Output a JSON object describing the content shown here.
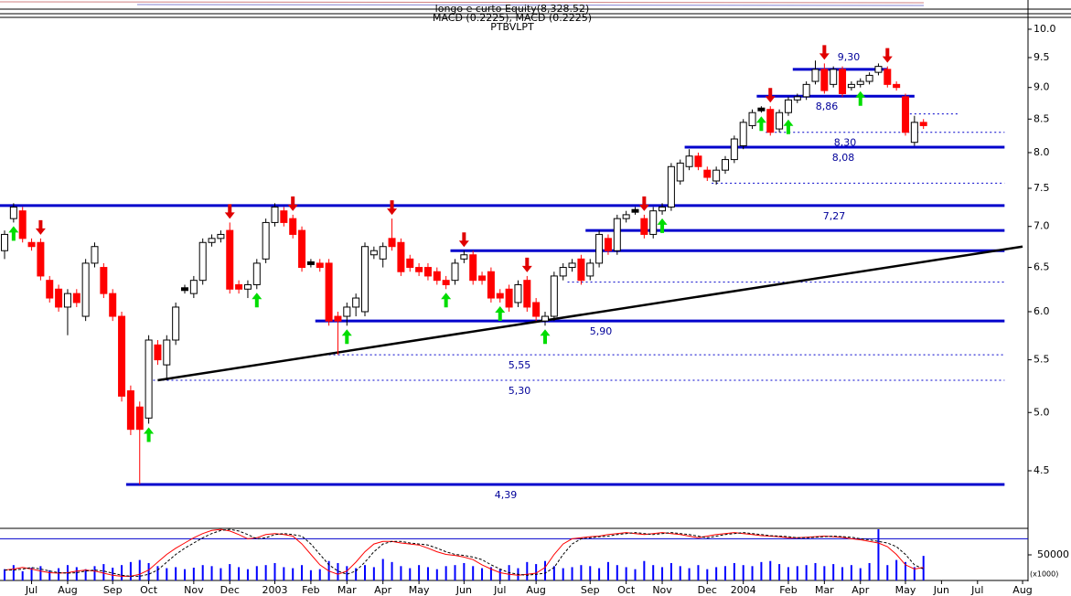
{
  "chart_data": {
    "type": "candlestick",
    "header": [
      "longo e curto Equity(8,328.52)",
      "MACD (0.2225), MACD (0.2225)",
      "PTBVLPT"
    ],
    "categories": [
      null,
      null,
      null,
      "Jul",
      null,
      null,
      null,
      "Aug",
      null,
      null,
      null,
      null,
      "Sep",
      null,
      null,
      null,
      "Oct",
      null,
      null,
      null,
      null,
      "Nov",
      null,
      null,
      null,
      "Dec",
      null,
      null,
      null,
      null,
      "2003",
      null,
      null,
      null,
      "Feb",
      null,
      null,
      null,
      "Mar",
      null,
      null,
      null,
      "Apr",
      null,
      null,
      null,
      "May",
      null,
      null,
      null,
      null,
      "Jun",
      null,
      null,
      null,
      "Jul",
      null,
      null,
      null,
      "Aug",
      null,
      null,
      null,
      null,
      null,
      "Sep",
      null,
      null,
      null,
      "Oct",
      null,
      null,
      null,
      "Nov",
      null,
      null,
      null,
      null,
      "Dec",
      null,
      null,
      null,
      "2004",
      null,
      null,
      null,
      null,
      "Feb",
      null,
      null,
      null,
      "Mar",
      null,
      null,
      null,
      "Apr",
      null,
      null,
      null,
      null,
      "May",
      null,
      null,
      null,
      "Jun",
      null,
      null,
      null,
      "Jul",
      null,
      null,
      null,
      null,
      "Aug"
    ],
    "open": [
      6.7,
      7.1,
      7.2,
      6.8,
      6.8,
      6.35,
      6.25,
      6.05,
      6.2,
      5.95,
      6.55,
      6.5,
      6.2,
      5.95,
      5.2,
      5.05,
      4.95,
      5.65,
      5.45,
      5.7,
      6.25,
      6.2,
      6.35,
      6.8,
      6.85,
      6.95,
      6.3,
      6.25,
      6.3,
      6.6,
      7.05,
      7.2,
      7.1,
      6.95,
      6.55,
      6.55,
      6.55,
      5.95,
      5.95,
      6.05,
      6.0,
      6.65,
      6.6,
      6.85,
      6.8,
      6.6,
      6.5,
      6.5,
      6.45,
      6.35,
      6.35,
      6.6,
      6.65,
      6.4,
      6.45,
      6.2,
      6.25,
      6.1,
      6.35,
      6.1,
      5.9,
      5.95,
      6.4,
      6.5,
      6.6,
      6.4,
      6.55,
      6.85,
      6.7,
      7.1,
      7.2,
      7.1,
      6.9,
      7.2,
      7.25,
      7.6,
      7.8,
      7.95,
      7.75,
      7.6,
      7.75,
      7.9,
      8.1,
      8.4,
      8.65,
      8.65,
      8.35,
      8.6,
      8.8,
      8.85,
      9.1,
      9.3,
      9.05,
      9.3,
      9.0,
      9.05,
      9.1,
      9.25,
      9.3,
      9.05,
      8.85,
      8.15,
      8.45,
      null,
      null,
      null,
      null,
      null,
      null,
      null,
      null,
      null,
      null,
      null
    ],
    "high": [
      6.95,
      7.3,
      7.25,
      6.85,
      6.85,
      6.4,
      6.3,
      6.25,
      6.25,
      6.6,
      6.8,
      6.55,
      6.25,
      6.0,
      5.25,
      5.1,
      5.75,
      5.7,
      5.75,
      6.1,
      6.3,
      6.4,
      6.85,
      6.9,
      6.95,
      7.05,
      6.35,
      6.35,
      6.6,
      7.1,
      7.3,
      7.25,
      7.15,
      7.0,
      6.6,
      6.6,
      6.6,
      6.0,
      6.1,
      6.2,
      6.8,
      6.75,
      6.8,
      7.1,
      6.85,
      6.65,
      6.55,
      6.55,
      6.5,
      6.4,
      6.6,
      6.7,
      6.7,
      6.45,
      6.5,
      6.25,
      6.3,
      6.35,
      6.4,
      6.15,
      6.0,
      6.45,
      6.55,
      6.6,
      6.65,
      6.6,
      6.95,
      6.9,
      7.15,
      7.2,
      7.25,
      7.15,
      7.25,
      7.3,
      7.85,
      7.9,
      8.05,
      8.0,
      7.8,
      7.8,
      7.95,
      8.25,
      8.5,
      8.65,
      8.7,
      8.7,
      8.65,
      8.85,
      8.9,
      9.1,
      9.45,
      9.4,
      9.35,
      9.35,
      9.1,
      9.15,
      9.25,
      9.4,
      9.35,
      9.1,
      8.9,
      8.55,
      8.5,
      null,
      null,
      null,
      null,
      null,
      null,
      null,
      null,
      null,
      null,
      null
    ],
    "low": [
      6.6,
      7.05,
      6.8,
      6.7,
      6.35,
      6.1,
      6.0,
      5.75,
      6.05,
      5.9,
      6.5,
      6.15,
      5.9,
      5.1,
      4.8,
      4.39,
      4.9,
      5.45,
      5.3,
      5.65,
      6.2,
      6.15,
      6.3,
      6.75,
      6.8,
      6.2,
      6.2,
      6.15,
      6.25,
      6.55,
      7.0,
      7.0,
      6.85,
      6.45,
      6.5,
      6.45,
      5.85,
      5.55,
      5.85,
      5.95,
      5.95,
      6.6,
      6.5,
      6.7,
      6.4,
      6.45,
      6.4,
      6.35,
      6.3,
      6.25,
      6.3,
      6.55,
      6.3,
      6.3,
      6.1,
      6.1,
      6.0,
      6.05,
      6.0,
      5.9,
      5.85,
      5.9,
      6.35,
      6.45,
      6.3,
      6.35,
      6.5,
      6.65,
      6.65,
      7.05,
      7.15,
      6.85,
      6.85,
      7.15,
      7.2,
      7.55,
      7.75,
      7.75,
      7.6,
      7.55,
      7.7,
      7.85,
      8.05,
      8.35,
      8.6,
      8.25,
      8.3,
      8.55,
      8.75,
      8.8,
      9.05,
      8.9,
      9.0,
      8.85,
      8.95,
      9.0,
      9.05,
      9.2,
      9.0,
      8.95,
      8.25,
      8.1,
      8.35,
      null,
      null,
      null,
      null,
      null,
      null,
      null,
      null,
      null,
      null,
      null
    ],
    "close": [
      6.9,
      7.25,
      6.85,
      6.75,
      6.4,
      6.15,
      6.05,
      6.2,
      6.1,
      6.55,
      6.75,
      6.2,
      5.95,
      5.15,
      4.85,
      4.85,
      5.7,
      5.5,
      5.7,
      6.05,
      6.25,
      6.35,
      6.8,
      6.85,
      6.9,
      6.25,
      6.25,
      6.3,
      6.55,
      7.05,
      7.25,
      7.05,
      6.9,
      6.5,
      6.55,
      6.5,
      5.9,
      5.9,
      6.05,
      6.15,
      6.75,
      6.7,
      6.75,
      6.75,
      6.45,
      6.5,
      6.45,
      6.4,
      6.35,
      6.3,
      6.55,
      6.65,
      6.35,
      6.35,
      6.15,
      6.15,
      6.05,
      6.3,
      6.05,
      5.95,
      5.95,
      6.4,
      6.5,
      6.55,
      6.35,
      6.55,
      6.9,
      6.7,
      7.1,
      7.15,
      7.2,
      6.9,
      7.2,
      7.25,
      7.8,
      7.85,
      7.95,
      7.8,
      7.65,
      7.75,
      7.9,
      8.2,
      8.45,
      8.6,
      8.65,
      8.3,
      8.6,
      8.8,
      8.85,
      9.05,
      9.3,
      8.95,
      9.3,
      8.9,
      9.05,
      9.1,
      9.2,
      9.35,
      9.05,
      9.0,
      8.3,
      8.45,
      8.4,
      null,
      null,
      null,
      null,
      null,
      null,
      null,
      null,
      null,
      null,
      null
    ],
    "up_color": "#ffffff",
    "down_color": "#ff0000",
    "flat_color": "#000000",
    "log_scale": true,
    "ylim": [
      4.075,
      10.2
    ],
    "yticks": [
      {
        "value": 10,
        "label": "10.0"
      },
      9.5,
      {
        "value": 9,
        "label": "9.0"
      },
      8.5,
      {
        "value": 8,
        "label": "8.0"
      },
      7.5,
      {
        "value": 7,
        "label": "7.0"
      },
      6.5,
      {
        "value": 6,
        "label": "6.0"
      },
      5.5,
      {
        "value": 5,
        "label": "5.0"
      },
      4.5
    ],
    "levels": [
      {
        "value": 9.3,
        "label": "9,30",
        "start": 88,
        "end": 98,
        "style": "solid"
      },
      {
        "value": 8.86,
        "label": "8,86",
        "start": 84,
        "end": 101,
        "style": "solid"
      },
      {
        "value": 8.3,
        "label": "8,30",
        "start": 85,
        "end": 111,
        "style": "dashed"
      },
      {
        "value": 8.08,
        "label": "8,08",
        "start": 76,
        "end": 111,
        "style": "solid"
      },
      {
        "value": 7.27,
        "label": "7,27",
        "start": 0,
        "end": 111,
        "style": "solid"
      },
      {
        "value": 5.9,
        "label": "5,90",
        "start": 35,
        "end": 111,
        "style": "solid"
      },
      {
        "value": 5.55,
        "label": "5,55",
        "start": 36,
        "end": 111,
        "style": "dashed"
      },
      {
        "value": 5.3,
        "label": "5,30",
        "start": 17,
        "end": 111,
        "style": "dashed"
      },
      {
        "value": 4.39,
        "label": "4,39",
        "start": 14,
        "end": 111,
        "style": "solid"
      },
      {
        "value": 6.95,
        "start": 65,
        "end": 111,
        "style": "solid"
      },
      {
        "value": 6.7,
        "start": 50,
        "end": 111,
        "style": "solid"
      },
      {
        "value": 8.58,
        "start": 101,
        "end": 106,
        "style": "dashed"
      },
      {
        "value": 7.57,
        "start": 79,
        "end": 111,
        "style": "dashed"
      },
      {
        "value": 6.33,
        "start": 63,
        "end": 111,
        "style": "dashed"
      }
    ],
    "level_color": "#0000cc",
    "trendline": {
      "x": [
        17,
        113
      ],
      "y": [
        5.3,
        6.75
      ],
      "color": "#000000"
    },
    "sell_signals": [
      4,
      25,
      32,
      43,
      51,
      58,
      71,
      85,
      91,
      98
    ],
    "buy_signals": [
      1,
      16,
      28,
      38,
      49,
      55,
      60,
      73,
      84,
      87,
      95
    ],
    "sell_color": "#e00000",
    "buy_color": "#00dd00",
    "volume": [
      22000,
      30000,
      18000,
      25000,
      28000,
      20000,
      24000,
      30000,
      26000,
      22000,
      28000,
      32000,
      25000,
      30000,
      36000,
      40000,
      34000,
      28000,
      24000,
      26000,
      22000,
      25000,
      30000,
      28000,
      24000,
      32000,
      26000,
      22000,
      28000,
      30000,
      34000,
      26000,
      24000,
      30000,
      20000,
      22000,
      38000,
      34000,
      28000,
      24000,
      30000,
      26000,
      42000,
      36000,
      28000,
      24000,
      30000,
      26000,
      22000,
      28000,
      30000,
      34000,
      28000,
      24000,
      26000,
      22000,
      30000,
      24000,
      36000,
      32000,
      38000,
      28000,
      24000,
      26000,
      30000,
      28000,
      24000,
      36000,
      30000,
      26000,
      22000,
      38000,
      30000,
      26000,
      34000,
      28000,
      24000,
      30000,
      22000,
      26000,
      28000,
      34000,
      30000,
      28000,
      36000,
      38000,
      32000,
      26000,
      28000,
      30000,
      34000,
      28000,
      32000,
      26000,
      30000,
      24000,
      34000,
      100000,
      30000,
      40000,
      36000,
      26000,
      48000,
      null,
      null,
      null,
      null,
      null,
      null,
      null,
      null,
      null,
      null,
      null
    ],
    "volume_color": "#0000ff",
    "vlim": [
      0,
      100000
    ],
    "vticks": [
      50000
    ],
    "volume_unit": "(x1000)",
    "oscillator": [
      {
        "color": "#ff0000",
        "dashed": false,
        "values": [
          20,
          22,
          25,
          22,
          18,
          15,
          14,
          15,
          18,
          20,
          18,
          14,
          10,
          8,
          8,
          12,
          20,
          35,
          50,
          62,
          72,
          82,
          90,
          96,
          98,
          95,
          88,
          80,
          82,
          88,
          90,
          88,
          85,
          70,
          50,
          30,
          18,
          12,
          18,
          35,
          55,
          70,
          75,
          75,
          72,
          70,
          68,
          62,
          55,
          50,
          48,
          45,
          40,
          30,
          22,
          15,
          12,
          10,
          12,
          14,
          25,
          50,
          70,
          80,
          82,
          84,
          85,
          88,
          90,
          92,
          90,
          88,
          90,
          92,
          90,
          88,
          85,
          82,
          85,
          88,
          90,
          92,
          90,
          88,
          86,
          85,
          84,
          82,
          82,
          83,
          84,
          85,
          84,
          83,
          80,
          78,
          75,
          72,
          65,
          50,
          30,
          22,
          25,
          null,
          null,
          null,
          null,
          null,
          null,
          null,
          null,
          null,
          null,
          null
        ]
      },
      {
        "color": "#000000",
        "dashed": true,
        "values": [
          20,
          20,
          22,
          25,
          22,
          18,
          15,
          14,
          15,
          18,
          20,
          18,
          14,
          10,
          8,
          8,
          12,
          20,
          35,
          50,
          62,
          72,
          82,
          90,
          96,
          98,
          95,
          88,
          80,
          82,
          88,
          90,
          88,
          85,
          70,
          50,
          30,
          18,
          12,
          18,
          35,
          55,
          70,
          75,
          75,
          72,
          70,
          68,
          62,
          55,
          50,
          48,
          45,
          40,
          30,
          22,
          15,
          12,
          10,
          12,
          14,
          25,
          50,
          70,
          80,
          82,
          84,
          85,
          88,
          90,
          92,
          90,
          88,
          90,
          92,
          90,
          88,
          85,
          82,
          85,
          88,
          90,
          92,
          90,
          88,
          86,
          85,
          84,
          82,
          82,
          83,
          84,
          85,
          84,
          83,
          80,
          78,
          75,
          72,
          65,
          50,
          30,
          22,
          null,
          null,
          null,
          null,
          null,
          null,
          null,
          null,
          null,
          null,
          null
        ]
      }
    ],
    "olim": [
      0,
      100
    ],
    "oscillator_reference": 80
  }
}
